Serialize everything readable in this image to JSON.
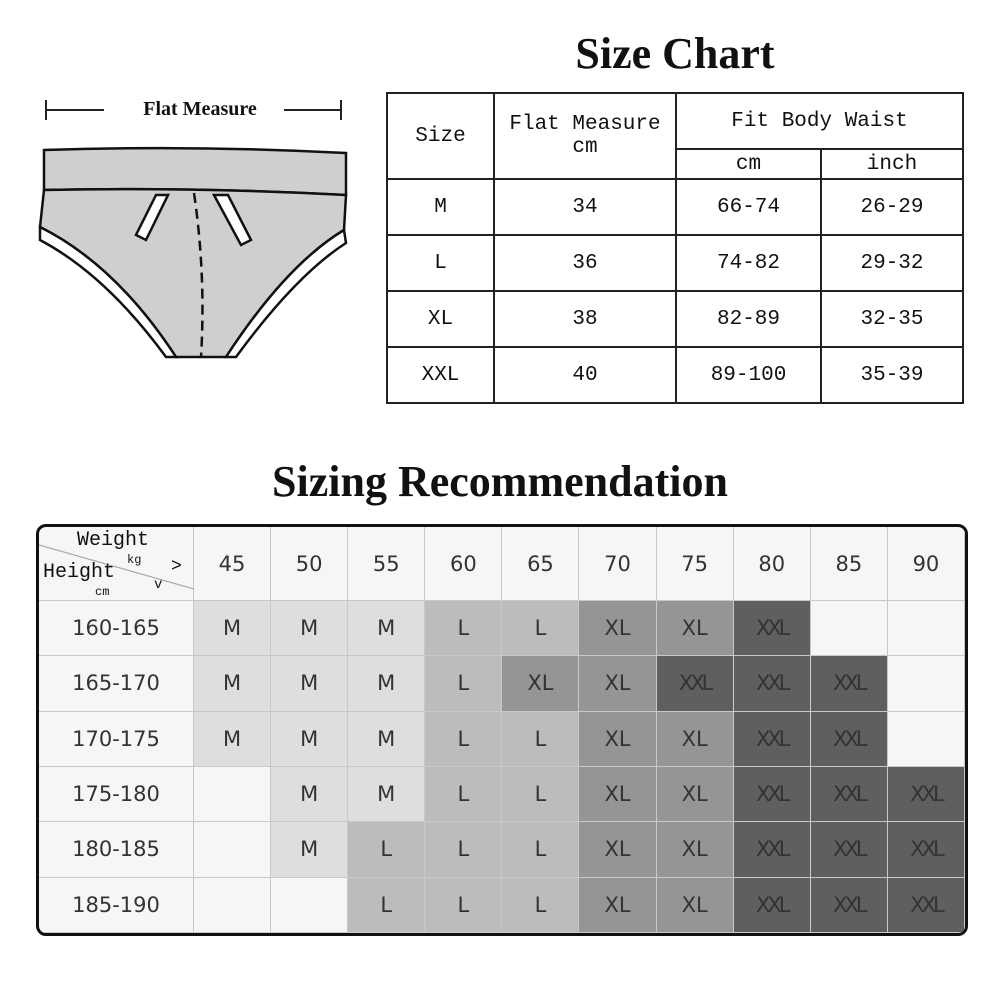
{
  "size_chart": {
    "title": "Size Chart",
    "flat_measure_label": "Flat Measure",
    "headers": {
      "size": "Size",
      "flat_measure": "Flat Measure",
      "flat_unit": "cm",
      "fit_body_waist": "Fit Body Waist",
      "cm": "cm",
      "inch": "inch"
    },
    "rows": [
      {
        "size": "M",
        "flat": "34",
        "cm": "66-74",
        "inch": "26-29"
      },
      {
        "size": "L",
        "flat": "36",
        "cm": "74-82",
        "inch": "29-32"
      },
      {
        "size": "XL",
        "flat": "38",
        "cm": "82-89",
        "inch": "32-35"
      },
      {
        "size": "XXL",
        "flat": "40",
        "cm": "89-100",
        "inch": "35-39"
      }
    ]
  },
  "recommendation": {
    "title": "Sizing Recommendation",
    "corner": {
      "weight": "Weight",
      "kg": "kg",
      "right_arrow": ">",
      "height": "Height",
      "cm": "cm",
      "down_arrow": "v"
    },
    "weights": [
      "45",
      "50",
      "55",
      "60",
      "65",
      "70",
      "75",
      "80",
      "85",
      "90"
    ],
    "heights": [
      "160-165",
      "165-170",
      "170-175",
      "175-180",
      "180-185",
      "185-190"
    ],
    "cells": [
      [
        "M",
        "M",
        "M",
        "L",
        "L",
        "XL",
        "XL",
        "XXL",
        "",
        ""
      ],
      [
        "M",
        "M",
        "M",
        "L",
        "XL",
        "XL",
        "XXL",
        "XXL",
        "XXL",
        ""
      ],
      [
        "M",
        "M",
        "M",
        "L",
        "L",
        "XL",
        "XL",
        "XXL",
        "XXL",
        ""
      ],
      [
        "",
        "M",
        "M",
        "L",
        "L",
        "XL",
        "XL",
        "XXL",
        "XXL",
        "XXL"
      ],
      [
        "",
        "M",
        "L",
        "L",
        "L",
        "XL",
        "XL",
        "XXL",
        "XXL",
        "XXL"
      ],
      [
        "",
        "",
        "L",
        "L",
        "L",
        "XL",
        "XL",
        "XXL",
        "XXL",
        "XXL"
      ]
    ],
    "colors": {
      "M": "#dedede",
      "L": "#bcbcbc",
      "XL": "#959595",
      "XXL": "#5f5f5f",
      "empty": "#f6f6f6"
    }
  }
}
